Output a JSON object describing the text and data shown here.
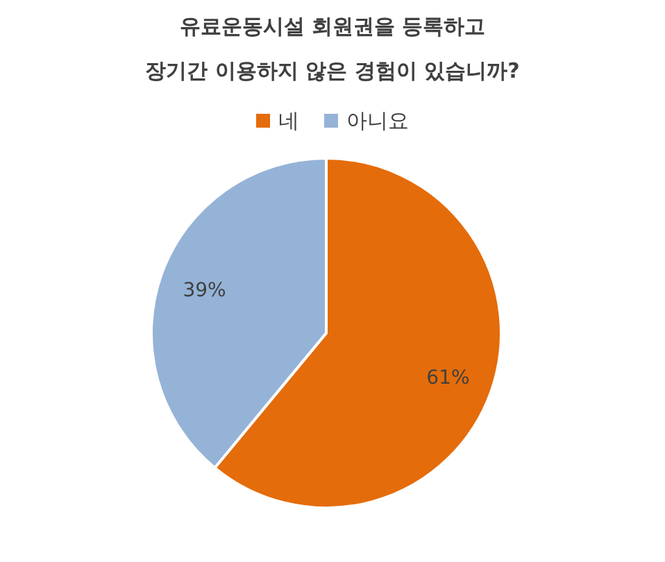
{
  "chart_data": {
    "type": "pie",
    "title": "유료운동시설 회원권을 등록하고 장기간 이용하지 않은 경험이 있습니까?",
    "categories": [
      "네",
      "아니요"
    ],
    "values": [
      61,
      39
    ],
    "colors": [
      "#e46c0a",
      "#95b3d7"
    ],
    "value_labels": [
      "61%",
      "39%"
    ],
    "legend": "top"
  }
}
